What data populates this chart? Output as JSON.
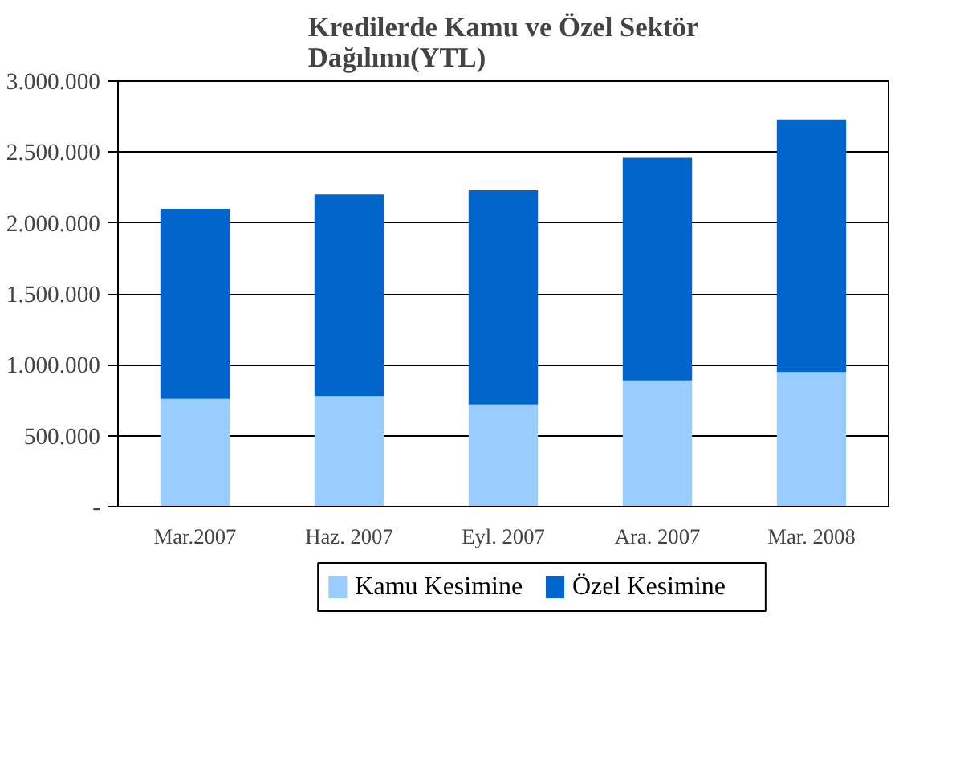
{
  "chart_data": {
    "type": "bar",
    "stacked": true,
    "title": "Kredilerde Kamu ve Özel Sektör Dağılımı(YTL)",
    "categories": [
      "Mar.2007",
      "Haz. 2007",
      "Eyl. 2007",
      "Ara. 2007",
      "Mar. 2008"
    ],
    "series": [
      {
        "name": "Kamu Kesimine",
        "color": "#99ccff",
        "values": [
          760000,
          780000,
          720000,
          890000,
          950000
        ]
      },
      {
        "name": "Özel Kesimine",
        "color": "#0066cc",
        "values": [
          1340000,
          1420000,
          1510000,
          1570000,
          1780000
        ]
      }
    ],
    "ylim": [
      0,
      3000000
    ],
    "yticks": [
      {
        "value": 0,
        "label": "-"
      },
      {
        "value": 500000,
        "label": "500.000"
      },
      {
        "value": 1000000,
        "label": "1.000.000"
      },
      {
        "value": 1500000,
        "label": "1.500.000"
      },
      {
        "value": 2000000,
        "label": "2.000.000"
      },
      {
        "value": 2500000,
        "label": "2.500.000"
      },
      {
        "value": 3000000,
        "label": "3.000.000"
      }
    ],
    "grid": "y",
    "legend": "bottom"
  }
}
